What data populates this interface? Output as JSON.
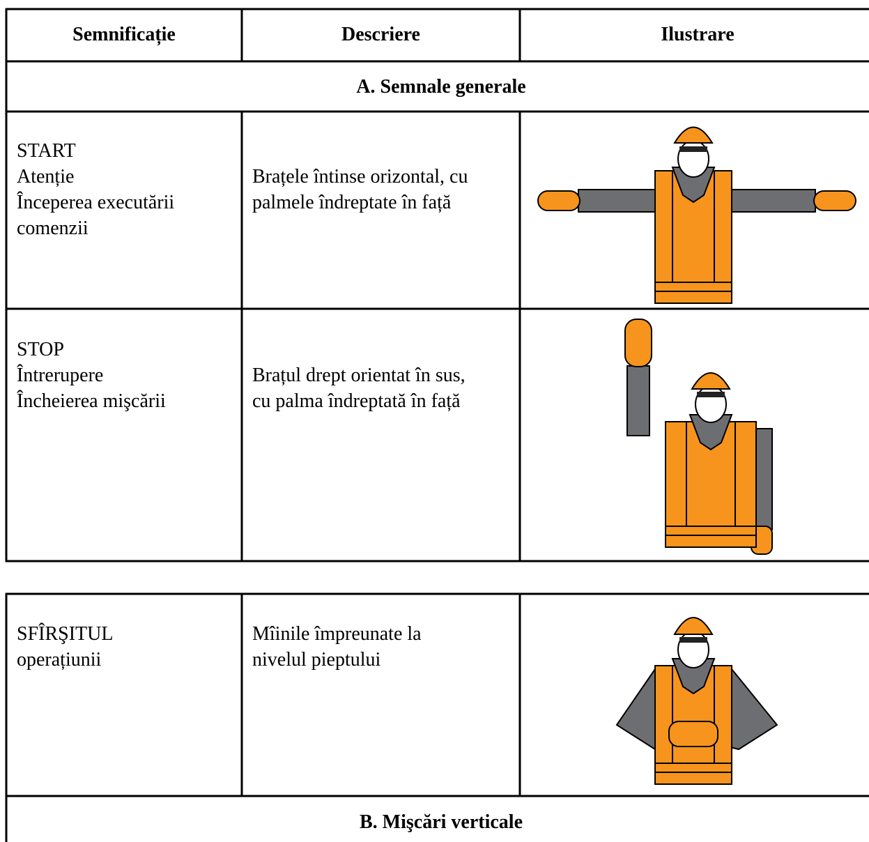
{
  "tables": [
    {
      "header": [
        "Semnificație",
        "Descriere",
        "Ilustrare"
      ],
      "rows": [
        {
          "section": "A. Semnale generale"
        },
        {
          "meaning": [
            "START",
            "Atenție",
            "Începerea executării",
            "comenzii"
          ],
          "description": [
            "Brațele întinse orizontal, cu",
            "palmele îndreptate în față"
          ]
        },
        {
          "meaning": [
            "STOP",
            "Întrerupere",
            "Încheierea mişcării"
          ],
          "description": [
            "Brațul drept orientat în sus,",
            "cu palma îndreptată în față"
          ]
        }
      ]
    },
    {
      "rows": [
        {
          "meaning": [
            "SFÎRŞITUL",
            "operațiunii"
          ],
          "description": [
            "Mîinile împreunate la",
            "nivelul pieptului"
          ]
        },
        {
          "section": "B. Mişcări verticale"
        }
      ]
    }
  ]
}
